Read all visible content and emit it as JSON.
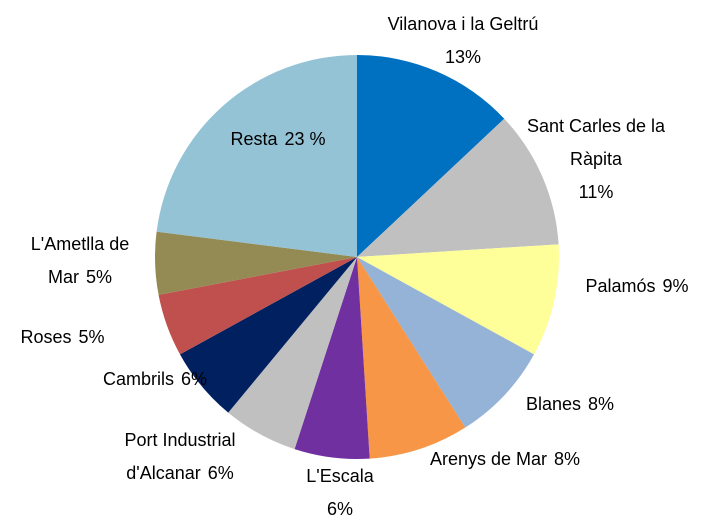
{
  "chart_data": {
    "type": "pie",
    "categories": [
      "Vilanova i la Geltrú",
      "Sant Carles de la Ràpita",
      "Palamós",
      "Blanes",
      "Arenys de Mar",
      "L'Escala",
      "Port Industrial d'Alcanar",
      "Cambrils",
      "Roses",
      "L'Ametlla de Mar",
      "Resta"
    ],
    "values": [
      13,
      11,
      9,
      8,
      8,
      6,
      6,
      6,
      5,
      5,
      23
    ],
    "value_labels": [
      "13%",
      "11%",
      "9%",
      "8%",
      "8%",
      "6%",
      "6%",
      "6%",
      "5%",
      "5%",
      "23 %"
    ],
    "colors": [
      "#0070c0",
      "#c0c0c0",
      "#ffff99",
      "#95b3d7",
      "#f79646",
      "#7030a0",
      "#c0c0c0",
      "#002060",
      "#c0504d",
      "#948a54",
      "#93c3d5"
    ]
  }
}
